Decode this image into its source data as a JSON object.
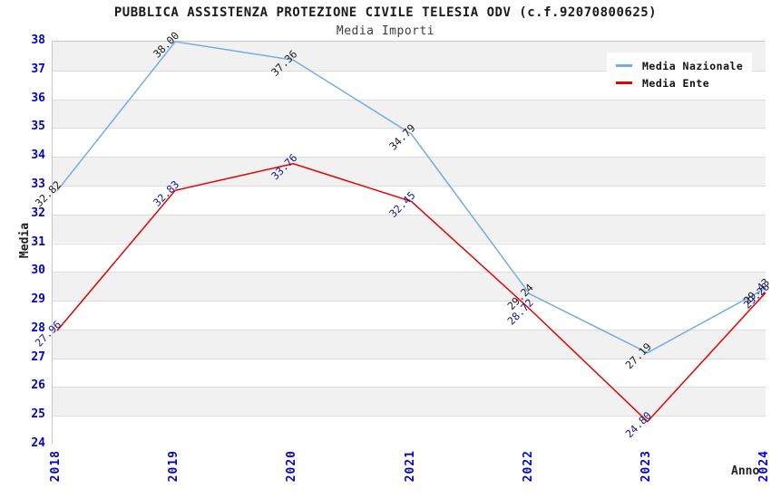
{
  "title": "PUBBLICA ASSISTENZA PROTEZIONE CIVILE TELESIA ODV (c.f.92070800625)",
  "subtitle": "Media Importi",
  "chart_data": {
    "type": "line",
    "x": [
      2018,
      2019,
      2020,
      2021,
      2022,
      2023,
      2024
    ],
    "xlabel": "Anno",
    "ylabel": "Media",
    "ylim": [
      24,
      38
    ],
    "ytick_step": 1,
    "grid": "horizontal alternating bands, gray band below each even tick",
    "legend_position": "top-right inside plot, white background",
    "series": [
      {
        "name": "Media Nazionale",
        "color": "#74ace0",
        "label_color": "#1a1a1a",
        "values": [
          32.82,
          38.0,
          37.36,
          34.79,
          29.24,
          27.19,
          29.43
        ]
      },
      {
        "name": "Media Ente",
        "color": "#e60000",
        "label_color": "#16168c",
        "values": [
          27.96,
          32.83,
          33.76,
          32.45,
          28.72,
          24.8,
          29.28
        ]
      }
    ],
    "colors": {
      "axis_tick_text": "#0202cf",
      "band_gray": "#f1f1f1",
      "band_white": "#ffffff",
      "grid_line": "#dcdcdc",
      "plot_border": "#c9c9c9",
      "title_text": "#1a1a1a"
    },
    "point_label_format": "2 decimals, rotated 45deg"
  }
}
